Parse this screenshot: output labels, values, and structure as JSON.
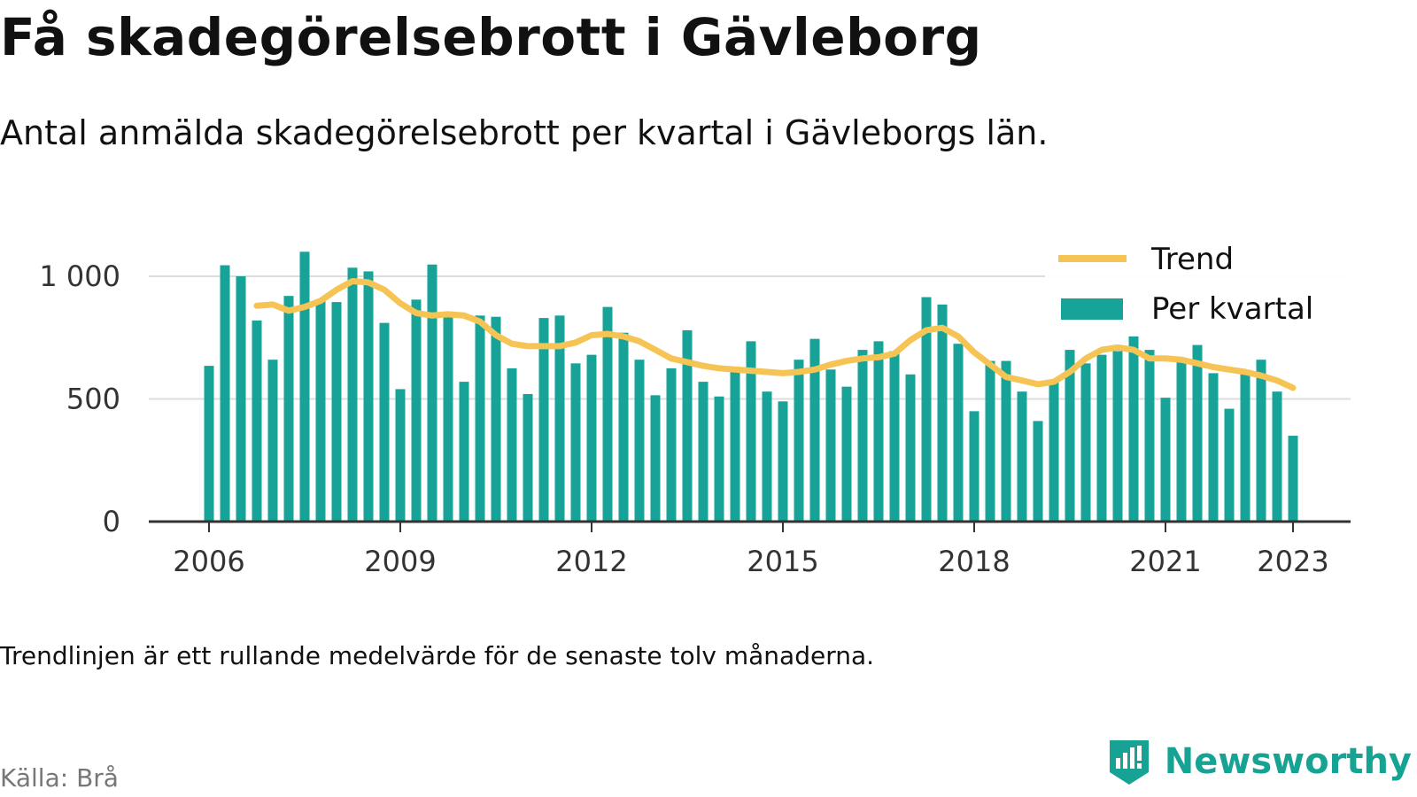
{
  "header": {
    "title": "Få skadegörelsebrott i Gävleborg",
    "subtitle": "Antal anmälda skadegörelsebrott per kvartal i Gävleborgs län."
  },
  "footer": {
    "note": "Trendlinjen är ett rullande medelvärde för de senaste tolv månaderna.",
    "source": "Källa: Brå",
    "brand": "Newsworthy",
    "brand_icon": "bar-chart-badge-icon"
  },
  "colors": {
    "bar": "#17a398",
    "trend": "#f6c454",
    "grid": "#dddddd",
    "axis": "#333333",
    "brand": "#16a394"
  },
  "chart_data": {
    "type": "bar",
    "x_start": "2006 Q1",
    "x_end": "2023 Q1",
    "categories": [
      "2006 Q1",
      "2006 Q2",
      "2006 Q3",
      "2006 Q4",
      "2007 Q1",
      "2007 Q2",
      "2007 Q3",
      "2007 Q4",
      "2008 Q1",
      "2008 Q2",
      "2008 Q3",
      "2008 Q4",
      "2009 Q1",
      "2009 Q2",
      "2009 Q3",
      "2009 Q4",
      "2010 Q1",
      "2010 Q2",
      "2010 Q3",
      "2010 Q4",
      "2011 Q1",
      "2011 Q2",
      "2011 Q3",
      "2011 Q4",
      "2012 Q1",
      "2012 Q2",
      "2012 Q3",
      "2012 Q4",
      "2013 Q1",
      "2013 Q2",
      "2013 Q3",
      "2013 Q4",
      "2014 Q1",
      "2014 Q2",
      "2014 Q3",
      "2014 Q4",
      "2015 Q1",
      "2015 Q2",
      "2015 Q3",
      "2015 Q4",
      "2016 Q1",
      "2016 Q2",
      "2016 Q3",
      "2016 Q4",
      "2017 Q1",
      "2017 Q2",
      "2017 Q3",
      "2017 Q4",
      "2018 Q1",
      "2018 Q2",
      "2018 Q3",
      "2018 Q4",
      "2019 Q1",
      "2019 Q2",
      "2019 Q3",
      "2019 Q4",
      "2020 Q1",
      "2020 Q2",
      "2020 Q3",
      "2020 Q4",
      "2021 Q1",
      "2021 Q2",
      "2021 Q3",
      "2021 Q4",
      "2022 Q1",
      "2022 Q2",
      "2022 Q3",
      "2022 Q4",
      "2023 Q1"
    ],
    "series": [
      {
        "name": "Per kvartal",
        "values": [
          635,
          1045,
          1000,
          820,
          660,
          920,
          1100,
          900,
          895,
          1035,
          1020,
          810,
          540,
          905,
          1048,
          835,
          570,
          840,
          835,
          625,
          520,
          830,
          840,
          645,
          680,
          875,
          770,
          660,
          515,
          625,
          780,
          570,
          510,
          615,
          735,
          530,
          490,
          660,
          745,
          620,
          550,
          700,
          735,
          695,
          600,
          915,
          885,
          725,
          450,
          655,
          655,
          530,
          410,
          575,
          700,
          645,
          680,
          695,
          755,
          700,
          505,
          665,
          720,
          605,
          460,
          605,
          660,
          530,
          350
        ]
      },
      {
        "name": "Trend",
        "values": [
          null,
          null,
          null,
          880,
          885,
          860,
          875,
          900,
          945,
          980,
          975,
          945,
          890,
          850,
          840,
          845,
          840,
          815,
          760,
          725,
          715,
          715,
          715,
          730,
          760,
          765,
          755,
          735,
          700,
          665,
          650,
          635,
          625,
          620,
          615,
          610,
          605,
          610,
          620,
          640,
          655,
          665,
          670,
          685,
          740,
          780,
          790,
          755,
          690,
          640,
          590,
          575,
          560,
          570,
          610,
          665,
          700,
          710,
          700,
          665,
          665,
          660,
          645,
          630,
          620,
          610,
          595,
          575,
          545
        ]
      }
    ],
    "xticks": [
      "2006",
      "2009",
      "2012",
      "2015",
      "2018",
      "2021",
      "2023"
    ],
    "yticks": [
      "0",
      "500",
      "1 000"
    ],
    "ylim": [
      0,
      1150
    ],
    "grid": true,
    "legend_position": "top-right",
    "legend": [
      "Trend",
      "Per kvartal"
    ]
  }
}
